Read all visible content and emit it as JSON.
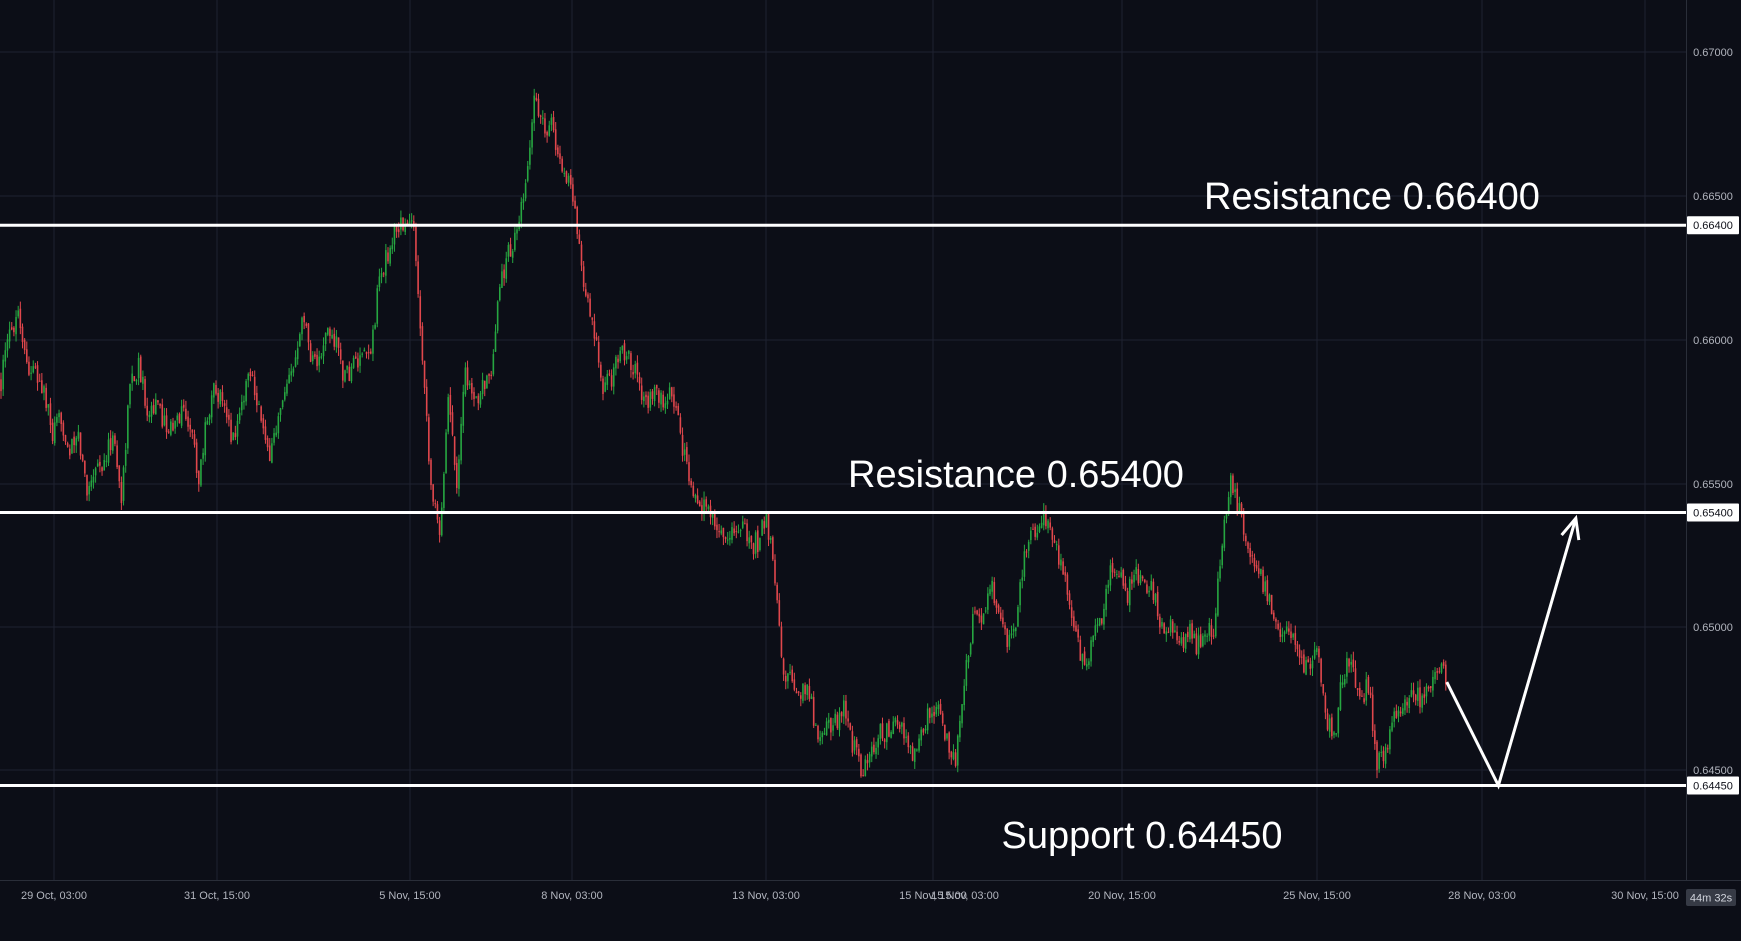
{
  "chart_data": {
    "type": "candlestick",
    "x_tick_labels": [
      "29 Oct, 03:00",
      "31 Oct, 15:00",
      "5 Nov, 15:00",
      "8 Nov, 03:00",
      "13 Nov, 03:00",
      "15 Nov, 15:00",
      "15 Nov, 03:00",
      "20 Nov, 15:00",
      "25 Nov, 15:00",
      "28 Nov, 03:00",
      "30 Nov, 15:00"
    ],
    "y_tick_labels": [
      "0.67000",
      "0.66500",
      "0.66000",
      "0.65500",
      "0.65000",
      "0.64500"
    ],
    "ylim": [
      0.6422,
      0.6714
    ],
    "grid": true,
    "colors": {
      "background": "#0c0e17",
      "up": "#26a641",
      "down": "#e0474c",
      "level_line": "#ffffff",
      "grid": "#1e2230"
    },
    "levels": [
      {
        "price": 0.664,
        "price_label": "0.66400",
        "annotation": "Resistance 0.66400"
      },
      {
        "price": 0.654,
        "price_label": "0.65400",
        "annotation": "Resistance 0.65400"
      },
      {
        "price": 0.6445,
        "price_label": "0.64450",
        "annotation": "Support 0.64450"
      }
    ],
    "close_path": [
      [
        0,
        0.6586
      ],
      [
        1,
        0.6602
      ],
      [
        2,
        0.6611
      ],
      [
        3,
        0.6592
      ],
      [
        4,
        0.6588
      ],
      [
        5,
        0.6582
      ],
      [
        6,
        0.6566
      ],
      [
        7,
        0.6573
      ],
      [
        8,
        0.6561
      ],
      [
        9,
        0.6566
      ],
      [
        10,
        0.6548
      ],
      [
        11,
        0.6557
      ],
      [
        12,
        0.6556
      ],
      [
        13,
        0.6568
      ],
      [
        14,
        0.6545
      ],
      [
        15,
        0.6585
      ],
      [
        16,
        0.6591
      ],
      [
        17,
        0.6577
      ],
      [
        18,
        0.6577
      ],
      [
        19,
        0.6572
      ],
      [
        20,
        0.6568
      ],
      [
        21,
        0.6576
      ],
      [
        22,
        0.6571
      ],
      [
        23,
        0.6552
      ],
      [
        24,
        0.6574
      ],
      [
        25,
        0.6585
      ],
      [
        26,
        0.6574
      ],
      [
        27,
        0.6566
      ],
      [
        28,
        0.6578
      ],
      [
        29,
        0.6591
      ],
      [
        30,
        0.6577
      ],
      [
        31,
        0.6559
      ],
      [
        34,
        0.659
      ],
      [
        35,
        0.6611
      ],
      [
        36,
        0.6596
      ],
      [
        37,
        0.6592
      ],
      [
        38,
        0.6603
      ],
      [
        39,
        0.6599
      ],
      [
        40,
        0.6586
      ],
      [
        41,
        0.6592
      ],
      [
        42,
        0.6592
      ],
      [
        43,
        0.6596
      ],
      [
        44,
        0.6621
      ],
      [
        45,
        0.663
      ],
      [
        46,
        0.664
      ],
      [
        47,
        0.664
      ],
      [
        48,
        0.664
      ],
      [
        49,
        0.6596
      ],
      [
        50,
        0.655
      ],
      [
        51,
        0.6531
      ],
      [
        52,
        0.6582
      ],
      [
        53,
        0.6551
      ],
      [
        54,
        0.6591
      ],
      [
        55,
        0.6576
      ],
      [
        56,
        0.6587
      ],
      [
        57,
        0.6584
      ],
      [
        58,
        0.662
      ],
      [
        59,
        0.663
      ],
      [
        60,
        0.6637
      ],
      [
        61,
        0.6652
      ],
      [
        62,
        0.6685
      ],
      [
        63,
        0.6675
      ],
      [
        64,
        0.6675
      ],
      [
        65,
        0.6662
      ],
      [
        66,
        0.6656
      ],
      [
        67,
        0.664
      ],
      [
        68,
        0.6615
      ],
      [
        69,
        0.6601
      ],
      [
        70,
        0.6583
      ],
      [
        71,
        0.6587
      ],
      [
        72,
        0.6597
      ],
      [
        73,
        0.6595
      ],
      [
        74,
        0.6587
      ],
      [
        75,
        0.6578
      ],
      [
        76,
        0.6581
      ],
      [
        77,
        0.6578
      ],
      [
        78,
        0.6582
      ],
      [
        79,
        0.6567
      ],
      [
        80,
        0.655
      ],
      [
        81,
        0.6546
      ],
      [
        82,
        0.6541
      ],
      [
        83,
        0.6536
      ],
      [
        84,
        0.6532
      ],
      [
        85,
        0.6532
      ],
      [
        86,
        0.6537
      ],
      [
        87,
        0.6528
      ],
      [
        88,
        0.653
      ],
      [
        89,
        0.6538
      ],
      [
        90,
        0.6518
      ],
      [
        91,
        0.6483
      ],
      [
        92,
        0.6481
      ],
      [
        93,
        0.6477
      ],
      [
        94,
        0.6478
      ],
      [
        95,
        0.646
      ],
      [
        96,
        0.6466
      ],
      [
        97,
        0.6467
      ],
      [
        98,
        0.6473
      ],
      [
        99,
        0.646
      ],
      [
        100,
        0.645
      ],
      [
        101,
        0.6453
      ],
      [
        102,
        0.6463
      ],
      [
        103,
        0.6463
      ],
      [
        104,
        0.6467
      ],
      [
        105,
        0.6463
      ],
      [
        106,
        0.6453
      ],
      [
        107,
        0.6463
      ],
      [
        108,
        0.647
      ],
      [
        109,
        0.6471
      ],
      [
        110,
        0.646
      ],
      [
        111,
        0.6451
      ],
      [
        112,
        0.6482
      ],
      [
        113,
        0.6503
      ],
      [
        114,
        0.6502
      ],
      [
        115,
        0.6516
      ],
      [
        116,
        0.6505
      ],
      [
        117,
        0.6495
      ],
      [
        118,
        0.6499
      ],
      [
        119,
        0.6527
      ],
      [
        120,
        0.6532
      ],
      [
        121,
        0.6538
      ],
      [
        122,
        0.6534
      ],
      [
        123,
        0.6524
      ],
      [
        124,
        0.6513
      ],
      [
        125,
        0.6496
      ],
      [
        126,
        0.6487
      ],
      [
        127,
        0.6495
      ],
      [
        128,
        0.6505
      ],
      [
        129,
        0.6518
      ],
      [
        130,
        0.652
      ],
      [
        131,
        0.6512
      ],
      [
        132,
        0.6521
      ],
      [
        133,
        0.6513
      ],
      [
        134,
        0.6513
      ],
      [
        135,
        0.65
      ],
      [
        136,
        0.65
      ],
      [
        137,
        0.6491
      ],
      [
        138,
        0.65
      ],
      [
        139,
        0.6494
      ],
      [
        140,
        0.6496
      ],
      [
        141,
        0.65
      ],
      [
        142,
        0.653
      ],
      [
        143,
        0.655
      ],
      [
        144,
        0.654
      ],
      [
        145,
        0.653
      ],
      [
        146,
        0.652
      ],
      [
        147,
        0.6514
      ],
      [
        148,
        0.6505
      ],
      [
        149,
        0.6496
      ],
      [
        150,
        0.65
      ],
      [
        151,
        0.6488
      ],
      [
        152,
        0.6488
      ],
      [
        153,
        0.6493
      ],
      [
        154,
        0.647
      ],
      [
        155,
        0.646
      ],
      [
        156,
        0.6483
      ],
      [
        157,
        0.6491
      ],
      [
        158,
        0.6474
      ],
      [
        159,
        0.6481
      ],
      [
        160,
        0.6454
      ],
      [
        161,
        0.6455
      ],
      [
        162,
        0.6468
      ],
      [
        163,
        0.647
      ],
      [
        164,
        0.6478
      ],
      [
        165,
        0.6475
      ],
      [
        166,
        0.648
      ],
      [
        167,
        0.6485
      ],
      [
        168,
        0.6483
      ]
    ],
    "projection": [
      [
        168,
        0.6481
      ],
      [
        174,
        0.6445
      ],
      [
        183,
        0.6538
      ]
    ],
    "current_countdown": "44m 32s"
  }
}
